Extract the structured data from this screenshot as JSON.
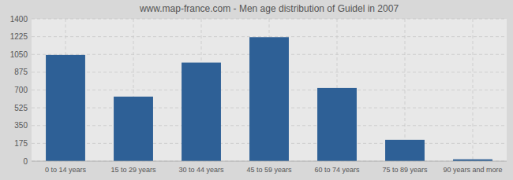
{
  "chart_data": {
    "type": "bar",
    "title": "www.map-france.com - Men age distribution of Guidel in 2007",
    "categories": [
      "0 to 14 years",
      "15 to 29 years",
      "30 to 44 years",
      "45 to 59 years",
      "60 to 74 years",
      "75 to 89 years",
      "90 years and more"
    ],
    "values": [
      1045,
      635,
      970,
      1220,
      720,
      210,
      18
    ],
    "color": "#2e6096",
    "ylim": [
      0,
      1400
    ],
    "yticks": [
      0,
      175,
      350,
      525,
      700,
      875,
      1050,
      1225,
      1400
    ],
    "grid": true
  }
}
